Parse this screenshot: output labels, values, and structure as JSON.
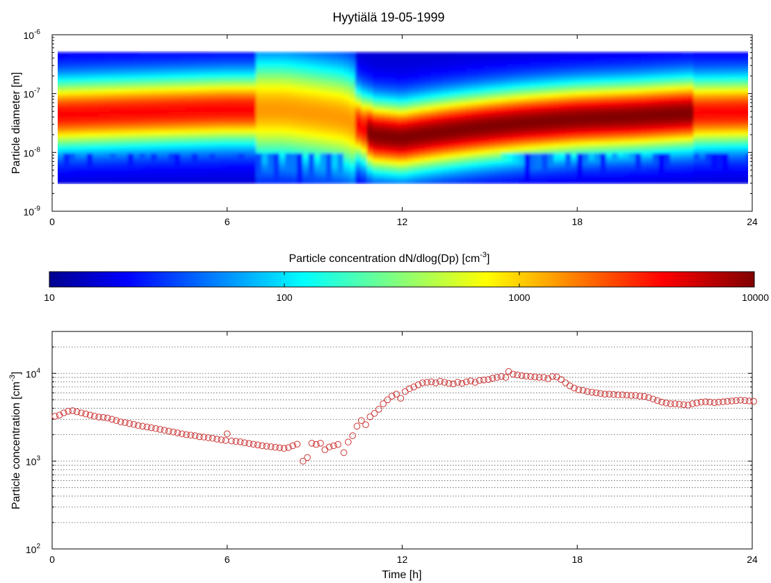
{
  "figure": {
    "title": "Hyytiälä 19-05-1999"
  },
  "chart_data": [
    {
      "type": "heatmap",
      "ylabel": "Particle diameter [m]",
      "xlim": [
        0,
        24
      ],
      "xticks": [
        "0",
        "6",
        "12",
        "18",
        "24"
      ],
      "ylim_exponents": [
        -9,
        -6
      ],
      "yticks": [
        {
          "base": "10",
          "exp": "-9"
        },
        {
          "base": "10",
          "exp": "-8"
        },
        {
          "base": "10",
          "exp": "-7"
        },
        {
          "base": "10",
          "exp": "-6"
        }
      ],
      "y_scale": "log",
      "data_range_diameter_m": [
        3e-09,
        5e-07
      ],
      "colorscale": "jet",
      "mode_diameter_nm_by_hour": [
        [
          0,
          45
        ],
        [
          3,
          50
        ],
        [
          6,
          55
        ],
        [
          8,
          55
        ],
        [
          10,
          40
        ],
        [
          11,
          20
        ],
        [
          12,
          18
        ],
        [
          14,
          25
        ],
        [
          16,
          32
        ],
        [
          18,
          38
        ],
        [
          20,
          42
        ],
        [
          22,
          48
        ],
        [
          24,
          50
        ]
      ]
    },
    {
      "type": "colorbar",
      "label_text": "Particle concentration dN/dlog(Dp) [cm",
      "label_sup": "-3",
      "label_close": "]",
      "scale": "log",
      "range": [
        10,
        10000
      ],
      "ticks": [
        "10",
        "100",
        "1000",
        "10000"
      ],
      "colors": [
        "#00008f",
        "#0000ff",
        "#00ffff",
        "#ffff00",
        "#ff0000",
        "#800000"
      ]
    },
    {
      "type": "scatter",
      "xlabel": "Time [h]",
      "ylabel_text": "Particle concentration [cm",
      "ylabel_sup": "-3",
      "ylabel_close": "]",
      "xlim": [
        0,
        24
      ],
      "xticks": [
        "0",
        "6",
        "12",
        "18",
        "24"
      ],
      "y_scale": "log",
      "ylim": [
        100,
        30000
      ],
      "yticks": [
        {
          "base": "10",
          "exp": "2"
        },
        {
          "base": "10",
          "exp": "3"
        },
        {
          "base": "10",
          "exp": "4"
        }
      ],
      "grid": "y-major-minor-dotted",
      "marker": "circle-open",
      "marker_color": "#cc3333",
      "series": [
        {
          "points": [
            [
              0.1,
              3250
            ],
            [
              0.25,
              3350
            ],
            [
              0.4,
              3550
            ],
            [
              0.55,
              3700
            ],
            [
              0.7,
              3750
            ],
            [
              0.85,
              3650
            ],
            [
              1.0,
              3550
            ],
            [
              1.15,
              3450
            ],
            [
              1.3,
              3350
            ],
            [
              1.45,
              3250
            ],
            [
              1.6,
              3180
            ],
            [
              1.75,
              3150
            ],
            [
              1.9,
              3100
            ],
            [
              2.05,
              3000
            ],
            [
              2.2,
              2900
            ],
            [
              2.35,
              2800
            ],
            [
              2.5,
              2750
            ],
            [
              2.65,
              2680
            ],
            [
              2.8,
              2620
            ],
            [
              2.95,
              2550
            ],
            [
              3.1,
              2500
            ],
            [
              3.25,
              2450
            ],
            [
              3.4,
              2400
            ],
            [
              3.55,
              2350
            ],
            [
              3.7,
              2300
            ],
            [
              3.85,
              2250
            ],
            [
              4.0,
              2200
            ],
            [
              4.15,
              2150
            ],
            [
              4.3,
              2100
            ],
            [
              4.45,
              2050
            ],
            [
              4.6,
              2000
            ],
            [
              4.75,
              1980
            ],
            [
              4.9,
              1950
            ],
            [
              5.05,
              1900
            ],
            [
              5.2,
              1880
            ],
            [
              5.35,
              1850
            ],
            [
              5.5,
              1820
            ],
            [
              5.65,
              1780
            ],
            [
              5.8,
              1750
            ],
            [
              5.95,
              1720
            ],
            [
              6.0,
              2050
            ],
            [
              6.15,
              1700
            ],
            [
              6.3,
              1680
            ],
            [
              6.45,
              1660
            ],
            [
              6.6,
              1620
            ],
            [
              6.75,
              1590
            ],
            [
              6.9,
              1560
            ],
            [
              7.05,
              1530
            ],
            [
              7.2,
              1500
            ],
            [
              7.35,
              1480
            ],
            [
              7.5,
              1460
            ],
            [
              7.65,
              1440
            ],
            [
              7.8,
              1420
            ],
            [
              7.95,
              1400
            ],
            [
              8.1,
              1430
            ],
            [
              8.25,
              1500
            ],
            [
              8.4,
              1560
            ],
            [
              8.6,
              1000
            ],
            [
              8.75,
              1100
            ],
            [
              8.9,
              1600
            ],
            [
              9.05,
              1550
            ],
            [
              9.2,
              1600
            ],
            [
              9.35,
              1350
            ],
            [
              9.5,
              1450
            ],
            [
              9.65,
              1500
            ],
            [
              9.8,
              1550
            ],
            [
              10.0,
              1250
            ],
            [
              10.15,
              1650
            ],
            [
              10.3,
              1950
            ],
            [
              10.45,
              2500
            ],
            [
              10.6,
              2900
            ],
            [
              10.75,
              2600
            ],
            [
              10.9,
              3200
            ],
            [
              11.05,
              3500
            ],
            [
              11.2,
              3900
            ],
            [
              11.35,
              4500
            ],
            [
              11.5,
              5000
            ],
            [
              11.65,
              5500
            ],
            [
              11.8,
              5800
            ],
            [
              11.95,
              5200
            ],
            [
              12.1,
              6200
            ],
            [
              12.25,
              6700
            ],
            [
              12.4,
              7000
            ],
            [
              12.55,
              7400
            ],
            [
              12.7,
              7800
            ],
            [
              12.85,
              7900
            ],
            [
              13.0,
              8000
            ],
            [
              13.15,
              7800
            ],
            [
              13.3,
              8100
            ],
            [
              13.45,
              7900
            ],
            [
              13.6,
              7700
            ],
            [
              13.75,
              7600
            ],
            [
              13.9,
              7900
            ],
            [
              14.05,
              7700
            ],
            [
              14.2,
              8000
            ],
            [
              14.35,
              8200
            ],
            [
              14.5,
              7900
            ],
            [
              14.65,
              8300
            ],
            [
              14.8,
              8400
            ],
            [
              14.95,
              8500
            ],
            [
              15.1,
              8800
            ],
            [
              15.25,
              9000
            ],
            [
              15.4,
              9200
            ],
            [
              15.55,
              9000
            ],
            [
              15.65,
              10500
            ],
            [
              15.8,
              9800
            ],
            [
              15.95,
              9600
            ],
            [
              16.1,
              9400
            ],
            [
              16.25,
              9300
            ],
            [
              16.4,
              9200
            ],
            [
              16.55,
              9100
            ],
            [
              16.7,
              9000
            ],
            [
              16.85,
              9000
            ],
            [
              17.0,
              8700
            ],
            [
              17.15,
              9200
            ],
            [
              17.3,
              9100
            ],
            [
              17.45,
              8500
            ],
            [
              17.6,
              7800
            ],
            [
              17.75,
              7200
            ],
            [
              17.9,
              6800
            ],
            [
              18.05,
              6500
            ],
            [
              18.2,
              6400
            ],
            [
              18.35,
              6200
            ],
            [
              18.5,
              6100
            ],
            [
              18.65,
              6000
            ],
            [
              18.8,
              5900
            ],
            [
              18.95,
              5800
            ],
            [
              19.1,
              5800
            ],
            [
              19.25,
              5750
            ],
            [
              19.4,
              5700
            ],
            [
              19.55,
              5700
            ],
            [
              19.7,
              5650
            ],
            [
              19.85,
              5600
            ],
            [
              20.0,
              5600
            ],
            [
              20.15,
              5500
            ],
            [
              20.3,
              5450
            ],
            [
              20.45,
              5300
            ],
            [
              20.6,
              5100
            ],
            [
              20.75,
              4900
            ],
            [
              20.9,
              4700
            ],
            [
              21.05,
              4600
            ],
            [
              21.2,
              4500
            ],
            [
              21.35,
              4500
            ],
            [
              21.5,
              4450
            ],
            [
              21.65,
              4400
            ],
            [
              21.8,
              4350
            ],
            [
              21.95,
              4500
            ],
            [
              22.1,
              4600
            ],
            [
              22.25,
              4700
            ],
            [
              22.4,
              4750
            ],
            [
              22.55,
              4700
            ],
            [
              22.7,
              4650
            ],
            [
              22.85,
              4700
            ],
            [
              23.0,
              4750
            ],
            [
              23.15,
              4800
            ],
            [
              23.3,
              4850
            ],
            [
              23.45,
              4900
            ],
            [
              23.6,
              4950
            ],
            [
              23.75,
              4900
            ],
            [
              23.9,
              4850
            ],
            [
              24.05,
              4800
            ]
          ]
        }
      ]
    }
  ]
}
